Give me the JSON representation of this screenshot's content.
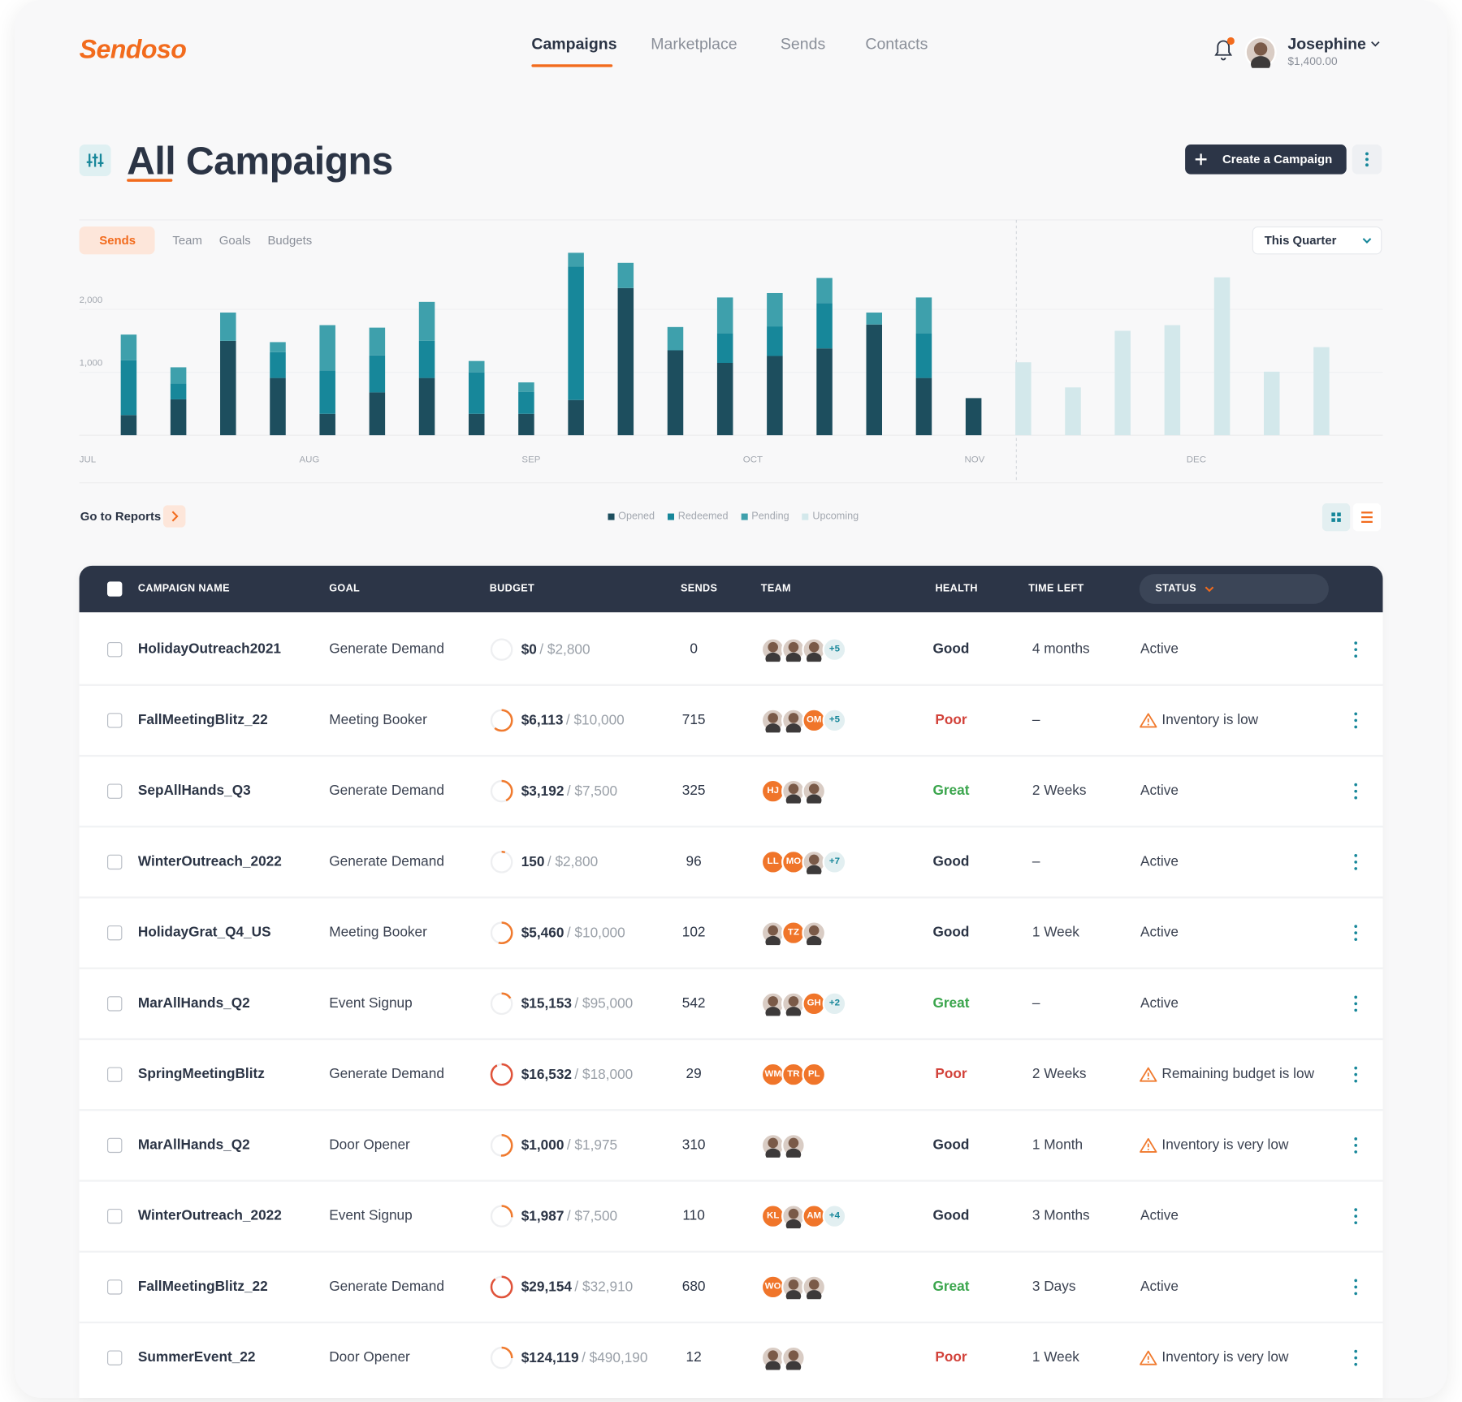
{
  "nav": {
    "logo": "Sendoso",
    "items": [
      "Campaigns",
      "Marketplace",
      "Sends",
      "Contacts"
    ],
    "user": "Josephine",
    "balance": "$1,400.00"
  },
  "header": {
    "title": "All Campaigns",
    "button": "Create a Campaign"
  },
  "chart_data": {
    "type": "bar",
    "stacked": true,
    "tabs": [
      "Sends",
      "Team",
      "Goals",
      "Budgets"
    ],
    "period": "This Quarter",
    "link": "Go to Reports",
    "categories": [
      null,
      null,
      null,
      null,
      null,
      null,
      null,
      null,
      null,
      null,
      null,
      null,
      null,
      null,
      null,
      null,
      null,
      null,
      null,
      null,
      null,
      null,
      null,
      null,
      null
    ],
    "month_labels": [
      "JUL",
      "AUG",
      "SEP",
      "OCT",
      "NOV",
      "DEC"
    ],
    "series": [
      {
        "name": "Opened",
        "color": "#1d4e5e",
        "values": [
          320,
          570,
          1500,
          910,
          340,
          680,
          910,
          340,
          340,
          560,
          2340,
          1350,
          1150,
          1260,
          1380,
          1760,
          910,
          590,
          null,
          null,
          null,
          null,
          null,
          null,
          null
        ]
      },
      {
        "name": "Redeemed",
        "color": "#17879a",
        "values": [
          870,
          250,
          0,
          410,
          690,
          590,
          590,
          660,
          350,
          2120,
          0,
          0,
          470,
          470,
          720,
          0,
          710,
          0,
          null,
          null,
          null,
          null,
          null,
          null,
          null
        ]
      },
      {
        "name": "Pending",
        "color": "#3ea0ac",
        "values": [
          410,
          260,
          450,
          160,
          720,
          440,
          620,
          180,
          150,
          220,
          400,
          370,
          570,
          530,
          400,
          190,
          570,
          0,
          null,
          null,
          null,
          null,
          null,
          null,
          null
        ]
      },
      {
        "name": "Upcoming",
        "color": "#d3e8eb",
        "values": [
          null,
          null,
          null,
          null,
          null,
          null,
          null,
          null,
          null,
          null,
          null,
          null,
          null,
          null,
          null,
          null,
          null,
          null,
          1160,
          760,
          1660,
          1750,
          2510,
          1010,
          1400
        ]
      }
    ],
    "ylim": [
      0,
      3000
    ],
    "yticks": [
      {
        "value": 1000,
        "label": "1,000"
      },
      {
        "value": 2000,
        "label": "2,000"
      }
    ],
    "grid": true
  },
  "table": {
    "columns": [
      "CAMPAIGN NAME",
      "GOAL",
      "BUDGET",
      "SENDS",
      "TEAM",
      "HEALTH",
      "TIME LEFT",
      "STATUS"
    ],
    "rows": [
      {
        "name": "HolidayOutreach2021",
        "goal": "Generate Demand",
        "spent": "$0",
        "total": "/ $2,800",
        "sends": 0,
        "team": [
          null,
          null,
          null,
          "+5"
        ],
        "health": "Good",
        "time_left": "4 months",
        "status": "Active",
        "warning": false
      },
      {
        "name": "FallMeetingBlitz_22",
        "goal": "Meeting Booker",
        "spent": "$6,113",
        "total": "/ $10,000",
        "sends": 715,
        "team": [
          null,
          null,
          "OM",
          "+5"
        ],
        "health": "Poor",
        "time_left": "–",
        "status": "Inventory is low",
        "warning": true
      },
      {
        "name": "SepAllHands_Q3",
        "goal": "Generate Demand",
        "spent": "$3,192",
        "total": "/ $7,500",
        "sends": 325,
        "team": [
          "HJ",
          null,
          null
        ],
        "health": "Great",
        "time_left": "2 Weeks",
        "status": "Active",
        "warning": false
      },
      {
        "name": "WinterOutreach_2022",
        "goal": "Generate Demand",
        "spent": "150",
        "total": "/ $2,800",
        "sends": 96,
        "team": [
          "LL",
          "MO",
          null,
          "+7"
        ],
        "health": "Good",
        "time_left": "–",
        "status": "Active",
        "warning": false
      },
      {
        "name": "HolidayGrat_Q4_US",
        "goal": "Meeting Booker",
        "spent": "$5,460",
        "total": "/ $10,000",
        "sends": 102,
        "team": [
          null,
          "TZ",
          null
        ],
        "health": "Good",
        "time_left": "1 Week",
        "status": "Active",
        "warning": false
      },
      {
        "name": "MarAllHands_Q2",
        "goal": "Event Signup",
        "spent": "$15,153",
        "total": "/ $95,000",
        "sends": 542,
        "team": [
          null,
          null,
          "GH",
          "+2"
        ],
        "health": "Great",
        "time_left": "–",
        "status": "Active",
        "warning": false
      },
      {
        "name": "SpringMeetingBlitz",
        "goal": "Generate Demand",
        "spent": "$16,532",
        "total": "/ $18,000",
        "sends": 29,
        "team": [
          "WM",
          "TR",
          "PL"
        ],
        "health": "Poor",
        "time_left": "2 Weeks",
        "status": "Remaining budget is low",
        "warning": true
      },
      {
        "name": "MarAllHands_Q2",
        "goal": "Door Opener",
        "spent": "$1,000",
        "total": "/ $1,975",
        "sends": 310,
        "team": [
          null,
          null
        ],
        "health": "Good",
        "time_left": "1 Month",
        "status": "Inventory is very low",
        "warning": true
      },
      {
        "name": "WinterOutreach_2022",
        "goal": "Event Signup",
        "spent": "$1,987",
        "total": "/ $7,500",
        "sends": 110,
        "team": [
          "KL",
          null,
          "AM",
          "+4"
        ],
        "health": "Good",
        "time_left": "3 Months",
        "status": "Active",
        "warning": false
      },
      {
        "name": "FallMeetingBlitz_22",
        "goal": "Generate Demand",
        "spent": "$29,154",
        "total": "/ $32,910",
        "sends": 680,
        "team": [
          "WO",
          null,
          null
        ],
        "health": "Great",
        "time_left": "3 Days",
        "status": "Active",
        "warning": false
      },
      {
        "name": "SummerEvent_22",
        "goal": "Door Opener",
        "spent": "$124,119",
        "total": "/ $490,190",
        "sends": 12,
        "team": [
          null,
          null
        ],
        "health": "Poor",
        "time_left": "1 Week",
        "status": "Inventory is very low",
        "warning": true
      }
    ]
  }
}
